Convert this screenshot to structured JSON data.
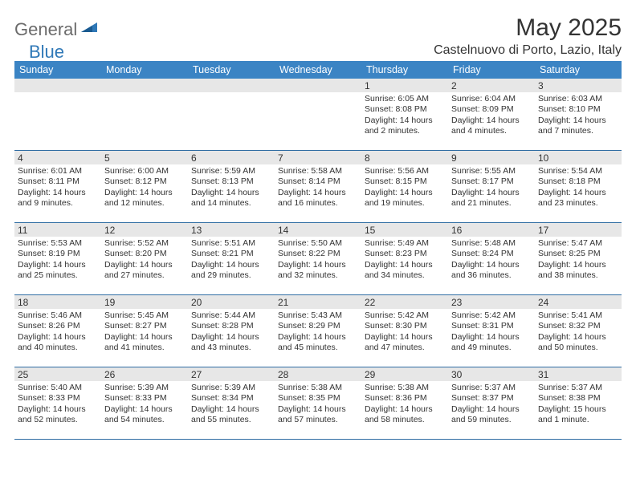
{
  "logo": {
    "text1": "General",
    "text2": "Blue"
  },
  "title": "May 2025",
  "location": "Castelnuovo di Porto, Lazio, Italy",
  "colors": {
    "header_bg": "#3b84c4",
    "header_text": "#ffffff",
    "daybar_bg": "#e7e7e7",
    "body_text": "#333333",
    "border": "#2f6da3",
    "logo_gray": "#6b6b6b",
    "logo_blue": "#2f78b7"
  },
  "weekdays": [
    "Sunday",
    "Monday",
    "Tuesday",
    "Wednesday",
    "Thursday",
    "Friday",
    "Saturday"
  ],
  "leading_blanks": 4,
  "days": [
    {
      "n": "1",
      "sunrise": "Sunrise: 6:05 AM",
      "sunset": "Sunset: 8:08 PM",
      "daylight": "Daylight: 14 hours and 2 minutes."
    },
    {
      "n": "2",
      "sunrise": "Sunrise: 6:04 AM",
      "sunset": "Sunset: 8:09 PM",
      "daylight": "Daylight: 14 hours and 4 minutes."
    },
    {
      "n": "3",
      "sunrise": "Sunrise: 6:03 AM",
      "sunset": "Sunset: 8:10 PM",
      "daylight": "Daylight: 14 hours and 7 minutes."
    },
    {
      "n": "4",
      "sunrise": "Sunrise: 6:01 AM",
      "sunset": "Sunset: 8:11 PM",
      "daylight": "Daylight: 14 hours and 9 minutes."
    },
    {
      "n": "5",
      "sunrise": "Sunrise: 6:00 AM",
      "sunset": "Sunset: 8:12 PM",
      "daylight": "Daylight: 14 hours and 12 minutes."
    },
    {
      "n": "6",
      "sunrise": "Sunrise: 5:59 AM",
      "sunset": "Sunset: 8:13 PM",
      "daylight": "Daylight: 14 hours and 14 minutes."
    },
    {
      "n": "7",
      "sunrise": "Sunrise: 5:58 AM",
      "sunset": "Sunset: 8:14 PM",
      "daylight": "Daylight: 14 hours and 16 minutes."
    },
    {
      "n": "8",
      "sunrise": "Sunrise: 5:56 AM",
      "sunset": "Sunset: 8:15 PM",
      "daylight": "Daylight: 14 hours and 19 minutes."
    },
    {
      "n": "9",
      "sunrise": "Sunrise: 5:55 AM",
      "sunset": "Sunset: 8:17 PM",
      "daylight": "Daylight: 14 hours and 21 minutes."
    },
    {
      "n": "10",
      "sunrise": "Sunrise: 5:54 AM",
      "sunset": "Sunset: 8:18 PM",
      "daylight": "Daylight: 14 hours and 23 minutes."
    },
    {
      "n": "11",
      "sunrise": "Sunrise: 5:53 AM",
      "sunset": "Sunset: 8:19 PM",
      "daylight": "Daylight: 14 hours and 25 minutes."
    },
    {
      "n": "12",
      "sunrise": "Sunrise: 5:52 AM",
      "sunset": "Sunset: 8:20 PM",
      "daylight": "Daylight: 14 hours and 27 minutes."
    },
    {
      "n": "13",
      "sunrise": "Sunrise: 5:51 AM",
      "sunset": "Sunset: 8:21 PM",
      "daylight": "Daylight: 14 hours and 29 minutes."
    },
    {
      "n": "14",
      "sunrise": "Sunrise: 5:50 AM",
      "sunset": "Sunset: 8:22 PM",
      "daylight": "Daylight: 14 hours and 32 minutes."
    },
    {
      "n": "15",
      "sunrise": "Sunrise: 5:49 AM",
      "sunset": "Sunset: 8:23 PM",
      "daylight": "Daylight: 14 hours and 34 minutes."
    },
    {
      "n": "16",
      "sunrise": "Sunrise: 5:48 AM",
      "sunset": "Sunset: 8:24 PM",
      "daylight": "Daylight: 14 hours and 36 minutes."
    },
    {
      "n": "17",
      "sunrise": "Sunrise: 5:47 AM",
      "sunset": "Sunset: 8:25 PM",
      "daylight": "Daylight: 14 hours and 38 minutes."
    },
    {
      "n": "18",
      "sunrise": "Sunrise: 5:46 AM",
      "sunset": "Sunset: 8:26 PM",
      "daylight": "Daylight: 14 hours and 40 minutes."
    },
    {
      "n": "19",
      "sunrise": "Sunrise: 5:45 AM",
      "sunset": "Sunset: 8:27 PM",
      "daylight": "Daylight: 14 hours and 41 minutes."
    },
    {
      "n": "20",
      "sunrise": "Sunrise: 5:44 AM",
      "sunset": "Sunset: 8:28 PM",
      "daylight": "Daylight: 14 hours and 43 minutes."
    },
    {
      "n": "21",
      "sunrise": "Sunrise: 5:43 AM",
      "sunset": "Sunset: 8:29 PM",
      "daylight": "Daylight: 14 hours and 45 minutes."
    },
    {
      "n": "22",
      "sunrise": "Sunrise: 5:42 AM",
      "sunset": "Sunset: 8:30 PM",
      "daylight": "Daylight: 14 hours and 47 minutes."
    },
    {
      "n": "23",
      "sunrise": "Sunrise: 5:42 AM",
      "sunset": "Sunset: 8:31 PM",
      "daylight": "Daylight: 14 hours and 49 minutes."
    },
    {
      "n": "24",
      "sunrise": "Sunrise: 5:41 AM",
      "sunset": "Sunset: 8:32 PM",
      "daylight": "Daylight: 14 hours and 50 minutes."
    },
    {
      "n": "25",
      "sunrise": "Sunrise: 5:40 AM",
      "sunset": "Sunset: 8:33 PM",
      "daylight": "Daylight: 14 hours and 52 minutes."
    },
    {
      "n": "26",
      "sunrise": "Sunrise: 5:39 AM",
      "sunset": "Sunset: 8:33 PM",
      "daylight": "Daylight: 14 hours and 54 minutes."
    },
    {
      "n": "27",
      "sunrise": "Sunrise: 5:39 AM",
      "sunset": "Sunset: 8:34 PM",
      "daylight": "Daylight: 14 hours and 55 minutes."
    },
    {
      "n": "28",
      "sunrise": "Sunrise: 5:38 AM",
      "sunset": "Sunset: 8:35 PM",
      "daylight": "Daylight: 14 hours and 57 minutes."
    },
    {
      "n": "29",
      "sunrise": "Sunrise: 5:38 AM",
      "sunset": "Sunset: 8:36 PM",
      "daylight": "Daylight: 14 hours and 58 minutes."
    },
    {
      "n": "30",
      "sunrise": "Sunrise: 5:37 AM",
      "sunset": "Sunset: 8:37 PM",
      "daylight": "Daylight: 14 hours and 59 minutes."
    },
    {
      "n": "31",
      "sunrise": "Sunrise: 5:37 AM",
      "sunset": "Sunset: 8:38 PM",
      "daylight": "Daylight: 15 hours and 1 minute."
    }
  ]
}
